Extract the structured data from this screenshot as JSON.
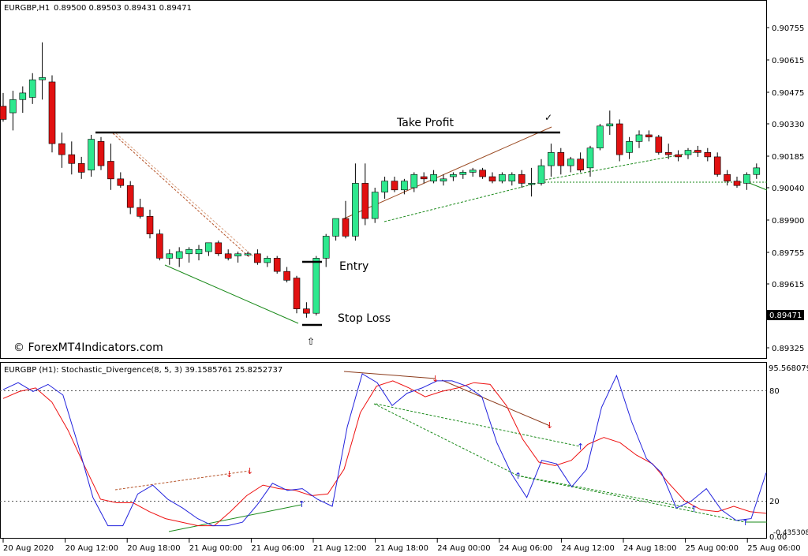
{
  "header": {
    "symbol": "EURGBP,H1",
    "ohlc": "0.89500 0.89503 0.89431 0.89471"
  },
  "indicator": {
    "title": "EURGBP (H1): Stochastic_Divergence(8, 5, 3) 39.1585761 25.8252737",
    "max_label": "95.568079",
    "min_label": "-0.435308",
    "levels": [
      "80",
      "20"
    ],
    "min_tick": "0.00"
  },
  "watermark": "© ForexMT4Indicators.com",
  "annotations": {
    "take_profit": "Take Profit",
    "entry": "Entry",
    "stop_loss": "Stop Loss",
    "check": "✓",
    "arrow": "⇧"
  },
  "colors": {
    "bull": "#2ee88e",
    "bear": "#e11111",
    "main_line": "#2222dd",
    "signal_line": "#ee1111",
    "bull_div": "#1a8a1a",
    "bear_div": "#8b3a1a"
  },
  "chart_data": [
    {
      "type": "candlestick",
      "title": "EURGBP,H1",
      "y_ticks": [
        "0.90755",
        "0.90615",
        "0.90475",
        "0.90330",
        "0.90185",
        "0.90040",
        "0.89900",
        "0.89755",
        "0.89615",
        "0.89470",
        "0.89325"
      ],
      "current_price": "0.89471",
      "ylim": [
        0.8931,
        0.9084
      ],
      "take_profit_level": 0.9027,
      "entry_level": 0.8972,
      "stop_loss_level": 0.8946,
      "candles": [
        [
          0.9041,
          0.9047,
          0.9034,
          0.9035
        ],
        [
          0.9038,
          0.9048,
          0.903,
          0.9044
        ],
        [
          0.9044,
          0.905,
          0.9038,
          0.9047
        ],
        [
          0.9045,
          0.9056,
          0.9042,
          0.9053
        ],
        [
          0.9053,
          0.907,
          0.9044,
          0.9054
        ],
        [
          0.9052,
          0.9055,
          0.902,
          0.9024
        ],
        [
          0.9024,
          0.9029,
          0.9013,
          0.9019
        ],
        [
          0.9019,
          0.9025,
          0.901,
          0.9015
        ],
        [
          0.9015,
          0.9018,
          0.9008,
          0.9011
        ],
        [
          0.9012,
          0.9028,
          0.9009,
          0.9026
        ],
        [
          0.9025,
          0.9027,
          0.9012,
          0.9014
        ],
        [
          0.9016,
          0.9024,
          0.9003,
          0.9008
        ],
        [
          0.9008,
          0.9011,
          0.9004,
          0.9005
        ],
        [
          0.9005,
          0.9007,
          0.8992,
          0.8995
        ],
        [
          0.8995,
          0.8999,
          0.899,
          0.8991
        ],
        [
          0.8991,
          0.8994,
          0.8981,
          0.8983
        ],
        [
          0.8983,
          0.8985,
          0.8971,
          0.8972
        ],
        [
          0.8972,
          0.8976,
          0.8969,
          0.8974
        ],
        [
          0.8972,
          0.8977,
          0.8968,
          0.8975
        ],
        [
          0.8974,
          0.8977,
          0.897,
          0.8976
        ],
        [
          0.8974,
          0.8978,
          0.8971,
          0.8976
        ],
        [
          0.8975,
          0.8979,
          0.8973,
          0.8979
        ],
        [
          0.8979,
          0.898,
          0.8973,
          0.8974
        ],
        [
          0.8974,
          0.8976,
          0.8971,
          0.8972
        ],
        [
          0.8973,
          0.8975,
          0.897,
          0.8974
        ],
        [
          0.8974,
          0.8975,
          0.8973,
          0.8974
        ],
        [
          0.8974,
          0.8976,
          0.8969,
          0.897
        ],
        [
          0.897,
          0.8973,
          0.8968,
          0.8972
        ],
        [
          0.8972,
          0.8973,
          0.8965,
          0.8966
        ],
        [
          0.8966,
          0.8968,
          0.8961,
          0.8962
        ],
        [
          0.8963,
          0.8964,
          0.8947,
          0.8949
        ],
        [
          0.8949,
          0.8952,
          0.8945,
          0.8947
        ],
        [
          0.8947,
          0.8973,
          0.8946,
          0.8972
        ],
        [
          0.8972,
          0.8983,
          0.8968,
          0.8982
        ],
        [
          0.8982,
          0.899,
          0.898,
          0.899
        ],
        [
          0.899,
          0.8998,
          0.8981,
          0.8982
        ],
        [
          0.8982,
          0.9015,
          0.898,
          0.9006
        ],
        [
          0.9006,
          0.9015,
          0.8987,
          0.899
        ],
        [
          0.899,
          0.9004,
          0.8988,
          0.9002
        ],
        [
          0.9002,
          0.9009,
          0.8999,
          0.9007
        ],
        [
          0.9007,
          0.9009,
          0.9002,
          0.9003
        ],
        [
          0.9003,
          0.9008,
          0.9001,
          0.9007
        ],
        [
          0.9004,
          0.9011,
          0.9002,
          0.901
        ],
        [
          0.9009,
          0.9011,
          0.9006,
          0.9008
        ],
        [
          0.9007,
          0.9012,
          0.9006,
          0.901
        ],
        [
          0.9007,
          0.901,
          0.9005,
          0.9008
        ],
        [
          0.9009,
          0.9011,
          0.9007,
          0.901
        ],
        [
          0.901,
          0.9012,
          0.9008,
          0.9011
        ],
        [
          0.9011,
          0.9013,
          0.9009,
          0.9012
        ],
        [
          0.9012,
          0.9013,
          0.9008,
          0.9009
        ],
        [
          0.9009,
          0.9011,
          0.9006,
          0.9007
        ],
        [
          0.9007,
          0.9011,
          0.9006,
          0.901
        ],
        [
          0.9007,
          0.9011,
          0.9005,
          0.901
        ],
        [
          0.901,
          0.9012,
          0.9004,
          0.9006
        ],
        [
          0.9006,
          0.9013,
          0.9,
          0.9006
        ],
        [
          0.9006,
          0.9017,
          0.9005,
          0.9014
        ],
        [
          0.9014,
          0.9024,
          0.9009,
          0.902
        ],
        [
          0.902,
          0.9022,
          0.901,
          0.9014
        ],
        [
          0.9014,
          0.9018,
          0.9011,
          0.9017
        ],
        [
          0.9017,
          0.902,
          0.9011,
          0.9012
        ],
        [
          0.9013,
          0.9023,
          0.9009,
          0.9022
        ],
        [
          0.9022,
          0.9033,
          0.9021,
          0.9032
        ],
        [
          0.9032,
          0.9039,
          0.9028,
          0.9033
        ],
        [
          0.9033,
          0.9035,
          0.9016,
          0.9019
        ],
        [
          0.902,
          0.9027,
          0.9017,
          0.9025
        ],
        [
          0.9025,
          0.903,
          0.9022,
          0.9028
        ],
        [
          0.9028,
          0.903,
          0.9025,
          0.9027
        ],
        [
          0.9027,
          0.9028,
          0.9019,
          0.902
        ],
        [
          0.902,
          0.9024,
          0.9017,
          0.9019
        ],
        [
          0.9019,
          0.9021,
          0.9016,
          0.9018
        ],
        [
          0.9019,
          0.9022,
          0.9017,
          0.9021
        ],
        [
          0.9021,
          0.9023,
          0.9018,
          0.902
        ],
        [
          0.902,
          0.9022,
          0.9016,
          0.9018
        ],
        [
          0.9018,
          0.902,
          0.9009,
          0.901
        ],
        [
          0.901,
          0.9012,
          0.9005,
          0.9007
        ],
        [
          0.9007,
          0.9009,
          0.9004,
          0.9005
        ],
        [
          0.9006,
          0.9011,
          0.9003,
          0.901
        ],
        [
          0.901,
          0.9015,
          0.9008,
          0.9013
        ]
      ]
    },
    {
      "type": "line",
      "title": "EURGBP (H1): Stochastic_Divergence(8, 5, 3) 39.1585761 25.8252737",
      "x_labels": [
        "20 Aug 2020",
        "20 Aug 12:00",
        "20 Aug 18:00",
        "21 Aug 00:00",
        "21 Aug 06:00",
        "21 Aug 12:00",
        "21 Aug 18:00",
        "24 Aug 00:00",
        "24 Aug 06:00",
        "24 Aug 12:00",
        "24 Aug 18:00",
        "25 Aug 00:00",
        "25 Aug 06:00"
      ],
      "ylim": [
        -0.435308,
        95.568079
      ],
      "levels": [
        80,
        20
      ],
      "series": [
        {
          "values": [
            83,
            87,
            82,
            86,
            80,
            52,
            22,
            6,
            6,
            24,
            29,
            21,
            16,
            10,
            6,
            6,
            8,
            18,
            30,
            26,
            27,
            21,
            17,
            62,
            92,
            87,
            74,
            81,
            84,
            88,
            88,
            85,
            79,
            53,
            35,
            22,
            43,
            41,
            28,
            38,
            73,
            91,
            65,
            44,
            36,
            16,
            20,
            27,
            15,
            9,
            10,
            36
          ]
        },
        {
          "values": [
            78,
            82,
            84,
            76,
            60,
            40,
            21,
            19,
            19,
            14,
            10,
            8,
            6,
            6,
            14,
            23,
            29,
            27,
            26,
            23,
            24,
            38,
            70,
            85,
            88,
            84,
            79,
            82,
            84,
            87,
            86,
            74,
            55,
            42,
            40,
            43,
            52,
            56,
            53,
            46,
            41,
            30,
            20,
            15,
            14,
            17,
            14,
            13
          ]
        }
      ]
    }
  ]
}
